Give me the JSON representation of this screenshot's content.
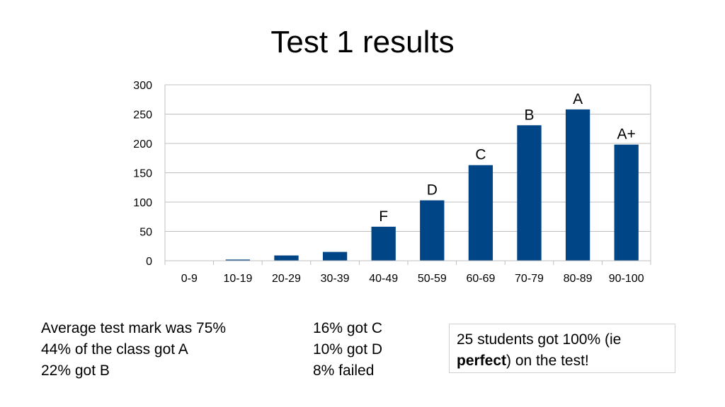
{
  "slide": {
    "title": "Test 1 results"
  },
  "chart_data": {
    "type": "bar",
    "title": "",
    "xlabel": "",
    "ylabel": "",
    "categories": [
      "0-9",
      "10-19",
      "20-29",
      "30-39",
      "40-49",
      "50-59",
      "60-69",
      "70-79",
      "80-89",
      "90-100"
    ],
    "values": [
      0,
      2,
      9,
      15,
      58,
      103,
      163,
      231,
      258,
      198
    ],
    "bar_labels": [
      "",
      "",
      "",
      "",
      "F",
      "D",
      "C",
      "B",
      "A",
      "A+"
    ],
    "ylim": [
      0,
      300
    ],
    "yticks": [
      0,
      50,
      100,
      150,
      200,
      250,
      300
    ],
    "grid": true,
    "legend": "none",
    "bar_color": "#004586"
  },
  "stats": {
    "left": [
      "Average test mark was 75%",
      "44% of the class got  A",
      "22% got B"
    ],
    "right": [
      "16% got C",
      "10% got D",
      "8% failed"
    ]
  },
  "note": {
    "before": "25 students got 100% (ie ",
    "bold": "perfect",
    "after": ") on the test!"
  }
}
